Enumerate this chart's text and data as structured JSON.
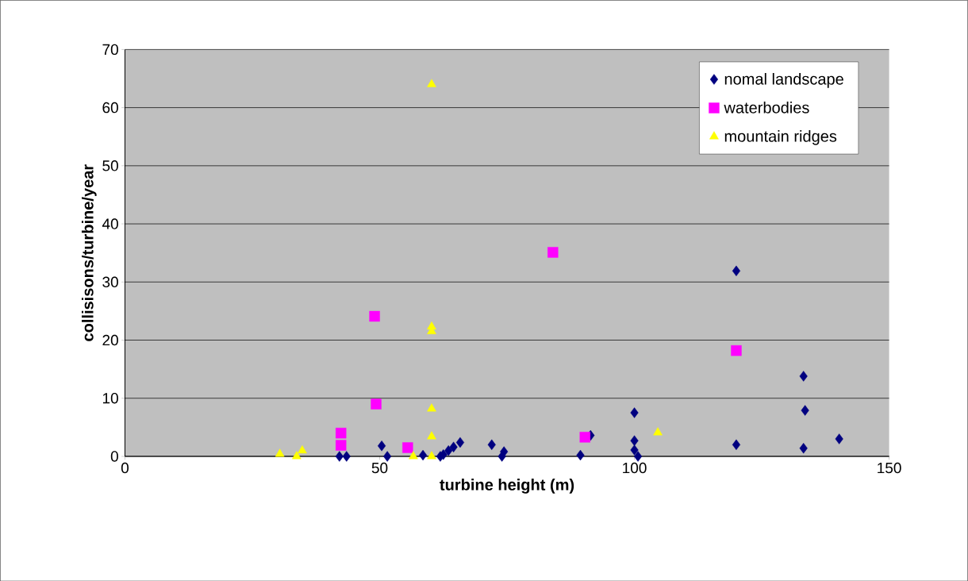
{
  "chart_data": {
    "type": "scatter",
    "xlabel": "turbine height (m)",
    "ylabel": "collisisons/turbine/year",
    "xlim": [
      0,
      150
    ],
    "ylim": [
      0,
      70
    ],
    "xticks": [
      0,
      50,
      100,
      150
    ],
    "yticks": [
      0,
      10,
      20,
      30,
      40,
      50,
      60,
      70
    ],
    "grid": "y",
    "legend": "top right",
    "series": [
      {
        "name": "nomal landscape",
        "color": "#000080",
        "marker": "diamond",
        "x": [
          42.1,
          43.5,
          50.4,
          51.5,
          58.5,
          61.9,
          62.5,
          63.5,
          64.5,
          65.8,
          72,
          74,
          74.4,
          89.4,
          91.4,
          100,
          100,
          100,
          100.7,
          120,
          120,
          133.2,
          133.5,
          133.2,
          140.2
        ],
        "values": [
          0,
          0,
          1.8,
          0,
          0.2,
          0,
          0.3,
          1.0,
          1.6,
          2.4,
          2.0,
          0,
          0.8,
          0.2,
          3.6,
          7.5,
          2.7,
          1.1,
          0,
          31.9,
          2.0,
          13.8,
          7.9,
          1.4,
          3.0
        ]
      },
      {
        "name": "waterbodies",
        "color": "#ff00ff",
        "marker": "square",
        "x": [
          42.4,
          42.4,
          49,
          49.3,
          55.5,
          84,
          90.3,
          120
        ],
        "values": [
          4.0,
          1.9,
          24.1,
          9.0,
          1.5,
          35.1,
          3.3,
          18.2
        ]
      },
      {
        "name": "mountain ridges",
        "color": "#ffff00",
        "marker": "triangle",
        "x": [
          30.4,
          33.7,
          34.8,
          56.6,
          60.2,
          60.2,
          60.2,
          60.2,
          60.2,
          60.2,
          104.6
        ],
        "values": [
          0.4,
          0,
          1.0,
          0,
          0,
          8.2,
          3.4,
          22.3,
          21.5,
          64.0,
          4.1
        ]
      }
    ]
  }
}
